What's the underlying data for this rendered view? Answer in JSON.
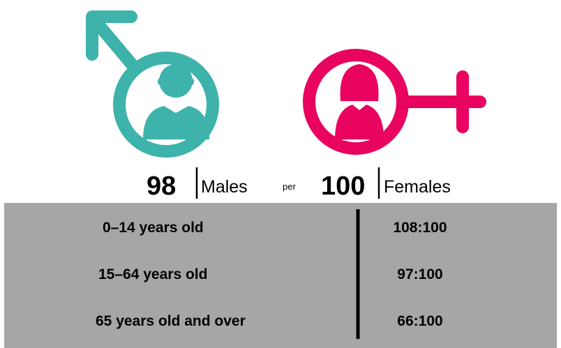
{
  "header": {
    "male_value": "98",
    "male_label": "Males",
    "per": "per",
    "female_value": "100",
    "female_label": "Females"
  },
  "table": {
    "rows": [
      [
        "0–14 years old",
        "108:100"
      ],
      [
        "15–64 years old",
        "97:100"
      ],
      [
        "65 years old and over",
        "66:100"
      ]
    ]
  }
}
